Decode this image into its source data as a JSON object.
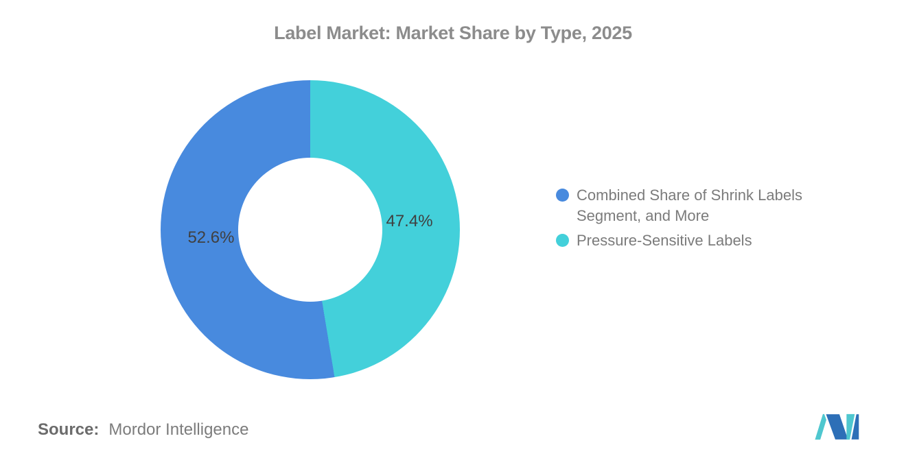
{
  "chart_data": {
    "type": "pie",
    "variant": "donut",
    "title": "Label Market: Market Share by Type, 2025",
    "slices": [
      {
        "name": "Combined Share of Shrink Labels Segment, and More",
        "value": 52.6,
        "label": "52.6%",
        "color": "#488ade"
      },
      {
        "name": "Pressure-Sensitive Labels",
        "value": 47.4,
        "label": "47.4%",
        "color": "#43d0da"
      }
    ],
    "total": 100,
    "clockwise_from_top_order": [
      1,
      0
    ],
    "legend_position": "right",
    "inner_radius_ratio": 0.48,
    "label_color": "#404040",
    "title_color": "#8c8c8c"
  },
  "source": {
    "prefix": "Source:",
    "name": "Mordor Intelligence"
  },
  "logo": {
    "name": "mordor-intelligence-logo",
    "blue": "#2d6fb7",
    "teal": "#4fc7cf"
  }
}
